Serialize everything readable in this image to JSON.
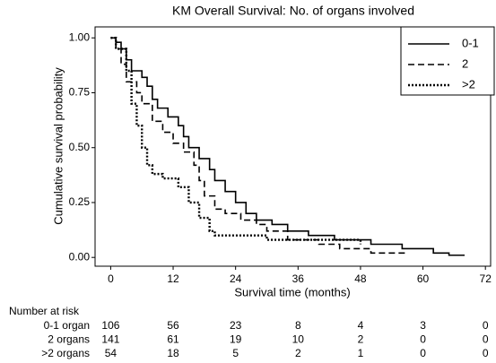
{
  "chart_data": {
    "type": "step",
    "title": "KM Overall Survival: No. of organs involved",
    "x_label": "Survival time (months)",
    "y_label": "Cumulative survival probability",
    "xlim": [
      -3,
      73
    ],
    "ylim": [
      -0.04,
      1.05
    ],
    "xticks": [
      0,
      12,
      24,
      36,
      48,
      60,
      72
    ],
    "yticks": [
      {
        "value": 0,
        "label": "0.00"
      },
      {
        "value": 0.25,
        "label": "0.25"
      },
      {
        "value": 0.5,
        "label": "0.50"
      },
      {
        "value": 0.75,
        "label": "0.75"
      },
      {
        "value": 1,
        "label": "1.00"
      }
    ],
    "legend": "top-right",
    "series": [
      {
        "name": "0-1",
        "color": "#000000",
        "dash": "solid",
        "x": [
          0,
          1,
          2,
          3,
          4,
          6,
          7,
          8,
          9,
          11,
          13,
          14,
          15,
          17,
          19,
          20,
          22,
          24,
          26,
          28,
          31,
          34,
          38,
          43,
          50,
          56,
          62,
          65,
          68
        ],
        "values": [
          1,
          0.98,
          0.95,
          0.9,
          0.85,
          0.82,
          0.78,
          0.72,
          0.68,
          0.64,
          0.6,
          0.55,
          0.5,
          0.45,
          0.4,
          0.35,
          0.3,
          0.25,
          0.2,
          0.17,
          0.15,
          0.12,
          0.1,
          0.08,
          0.06,
          0.04,
          0.02,
          0.01,
          0.01
        ]
      },
      {
        "name": "2",
        "color": "#000000",
        "dash": "dashed",
        "x": [
          0,
          1,
          2,
          3,
          5,
          6,
          8,
          10,
          12,
          14,
          16,
          17,
          18,
          20,
          22,
          25,
          28,
          30,
          34,
          40,
          44,
          50,
          57
        ],
        "values": [
          1,
          0.95,
          0.88,
          0.8,
          0.75,
          0.7,
          0.62,
          0.57,
          0.52,
          0.48,
          0.42,
          0.35,
          0.28,
          0.22,
          0.2,
          0.17,
          0.15,
          0.12,
          0.08,
          0.06,
          0.04,
          0.02,
          0.02
        ]
      },
      {
        "name": ">2",
        "color": "#000000",
        "dash": "dotted",
        "x": [
          0,
          1,
          3,
          4,
          5,
          6,
          7,
          8,
          10,
          13,
          15,
          17,
          19,
          20,
          30,
          48
        ],
        "values": [
          1,
          0.95,
          0.85,
          0.7,
          0.6,
          0.5,
          0.42,
          0.38,
          0.36,
          0.32,
          0.25,
          0.18,
          0.12,
          0.1,
          0.08,
          0.06
        ]
      }
    ],
    "risk_table": {
      "title": "Number at risk",
      "rows": [
        {
          "label": "0-1 organ",
          "values": [
            106,
            56,
            23,
            8,
            4,
            3,
            0
          ]
        },
        {
          "label": "2 organs",
          "values": [
            141,
            61,
            19,
            10,
            2,
            0,
            0
          ]
        },
        {
          "label": ">2 organs",
          "values": [
            54,
            18,
            5,
            2,
            1,
            0,
            0
          ]
        }
      ]
    }
  }
}
